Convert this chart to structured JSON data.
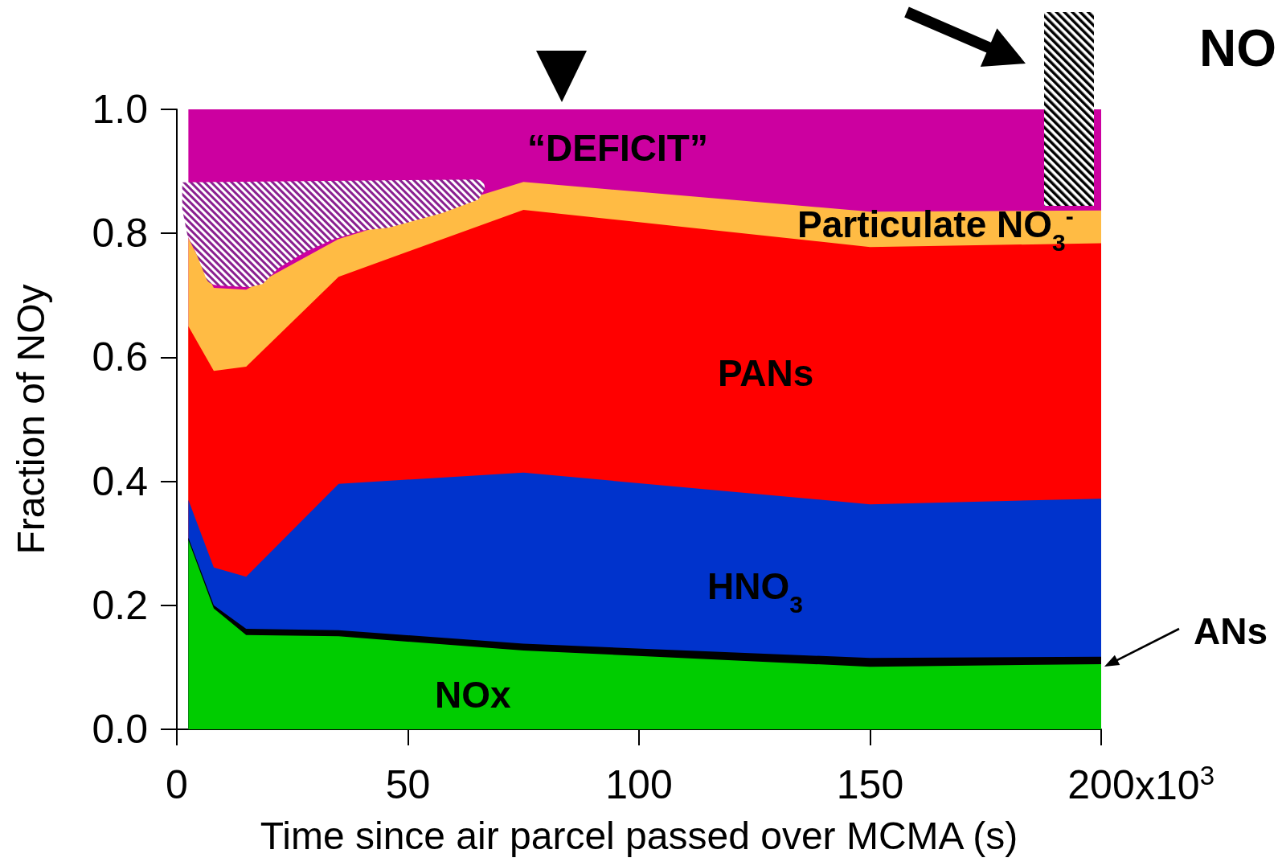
{
  "chart_data": {
    "type": "area",
    "stacked": true,
    "xlabel": "Time since air parcel passed over MCMA (s)",
    "ylabel": "Fraction of NOy",
    "x": [
      2.5,
      8,
      15,
      35,
      75,
      150,
      200
    ],
    "xlim": [
      0,
      200
    ],
    "xticks": [
      0,
      50,
      100,
      150,
      200
    ],
    "ylim": [
      0,
      1
    ],
    "yticks": [
      {
        "value": 0,
        "label": "0.0"
      },
      {
        "value": 0.2,
        "label": "0.2"
      },
      {
        "value": 0.4,
        "label": "0.4"
      },
      {
        "value": 0.6,
        "label": "0.6"
      },
      {
        "value": 0.8,
        "label": "0.8"
      },
      {
        "value": 1,
        "label": "1.0"
      }
    ],
    "grid": false,
    "series": [
      {
        "name": "NOx",
        "color": "#00cc00",
        "values": [
          0.305,
          0.195,
          0.152,
          0.15,
          0.127,
          0.101,
          0.105
        ]
      },
      {
        "name": "ANs",
        "color": "#000000",
        "values": [
          0.004,
          0.005,
          0.01,
          0.01,
          0.011,
          0.014,
          0.012
        ]
      },
      {
        "name": "HNO$_{3}$",
        "color": "#0033cc",
        "values": [
          0.061,
          0.061,
          0.084,
          0.236,
          0.276,
          0.248,
          0.255
        ]
      },
      {
        "name": "PANs",
        "color": "#ff0000",
        "values": [
          0.28,
          0.317,
          0.339,
          0.334,
          0.424,
          0.415,
          0.412
        ]
      },
      {
        "name": "Particulate NO$_{3}$$^{-}$",
        "color": "#ffbb44",
        "values": [
          0.142,
          0.134,
          0.124,
          0.061,
          0.045,
          0.057,
          0.053
        ]
      },
      {
        "name": "“DEFICIT”",
        "color": "#cc00a0",
        "values": [
          0.208,
          0.288,
          0.291,
          0.209,
          0.117,
          0.165,
          0.163
        ]
      }
    ],
    "annotations": [
      "x10$^{3}$",
      "NO"
    ]
  }
}
